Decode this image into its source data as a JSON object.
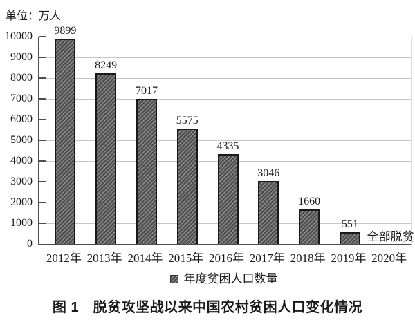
{
  "figure": {
    "unit_label": "单位：万人",
    "caption": "图 1　脱贫攻坚战以来中国农村贫困人口变化情况"
  },
  "chart_data": {
    "type": "bar",
    "title": "脱贫攻坚战以来中国农村贫困人口变化情况",
    "unit": "万人",
    "categories": [
      "2012年",
      "2013年",
      "2014年",
      "2015年",
      "2016年",
      "2017年",
      "2018年",
      "2019年",
      "2020年"
    ],
    "series": [
      {
        "name": "年度贫困人口数量",
        "values": [
          9899,
          8249,
          7017,
          5575,
          4335,
          3046,
          1660,
          551,
          null
        ]
      }
    ],
    "bar_labels": [
      "9899",
      "8249",
      "7017",
      "5575",
      "4335",
      "3046",
      "1660",
      "551",
      ""
    ],
    "annotations": [
      {
        "category": "2020年",
        "text": "全部脱贫"
      }
    ],
    "legend": [
      {
        "label": "年度贫困人口数量",
        "swatch": "hatched-dark-gray"
      }
    ],
    "legend_position": "bottom-center",
    "xlabel": "",
    "ylabel": "单位：万人",
    "ylim": [
      0,
      10000
    ],
    "y_ticks": [
      0,
      1000,
      2000,
      3000,
      4000,
      5000,
      6000,
      7000,
      8000,
      9000,
      10000
    ],
    "grid": "horizontal",
    "bar_style": "diagonal-hatch",
    "colors": {
      "bar_fill": "#4e4e4e",
      "bar_hatch": "#8e8e8e",
      "bar_border": "#1a1a1a",
      "gridline": "#c6c6c6",
      "axis": "#4d4d4d",
      "text": "#1a1a1a"
    }
  }
}
